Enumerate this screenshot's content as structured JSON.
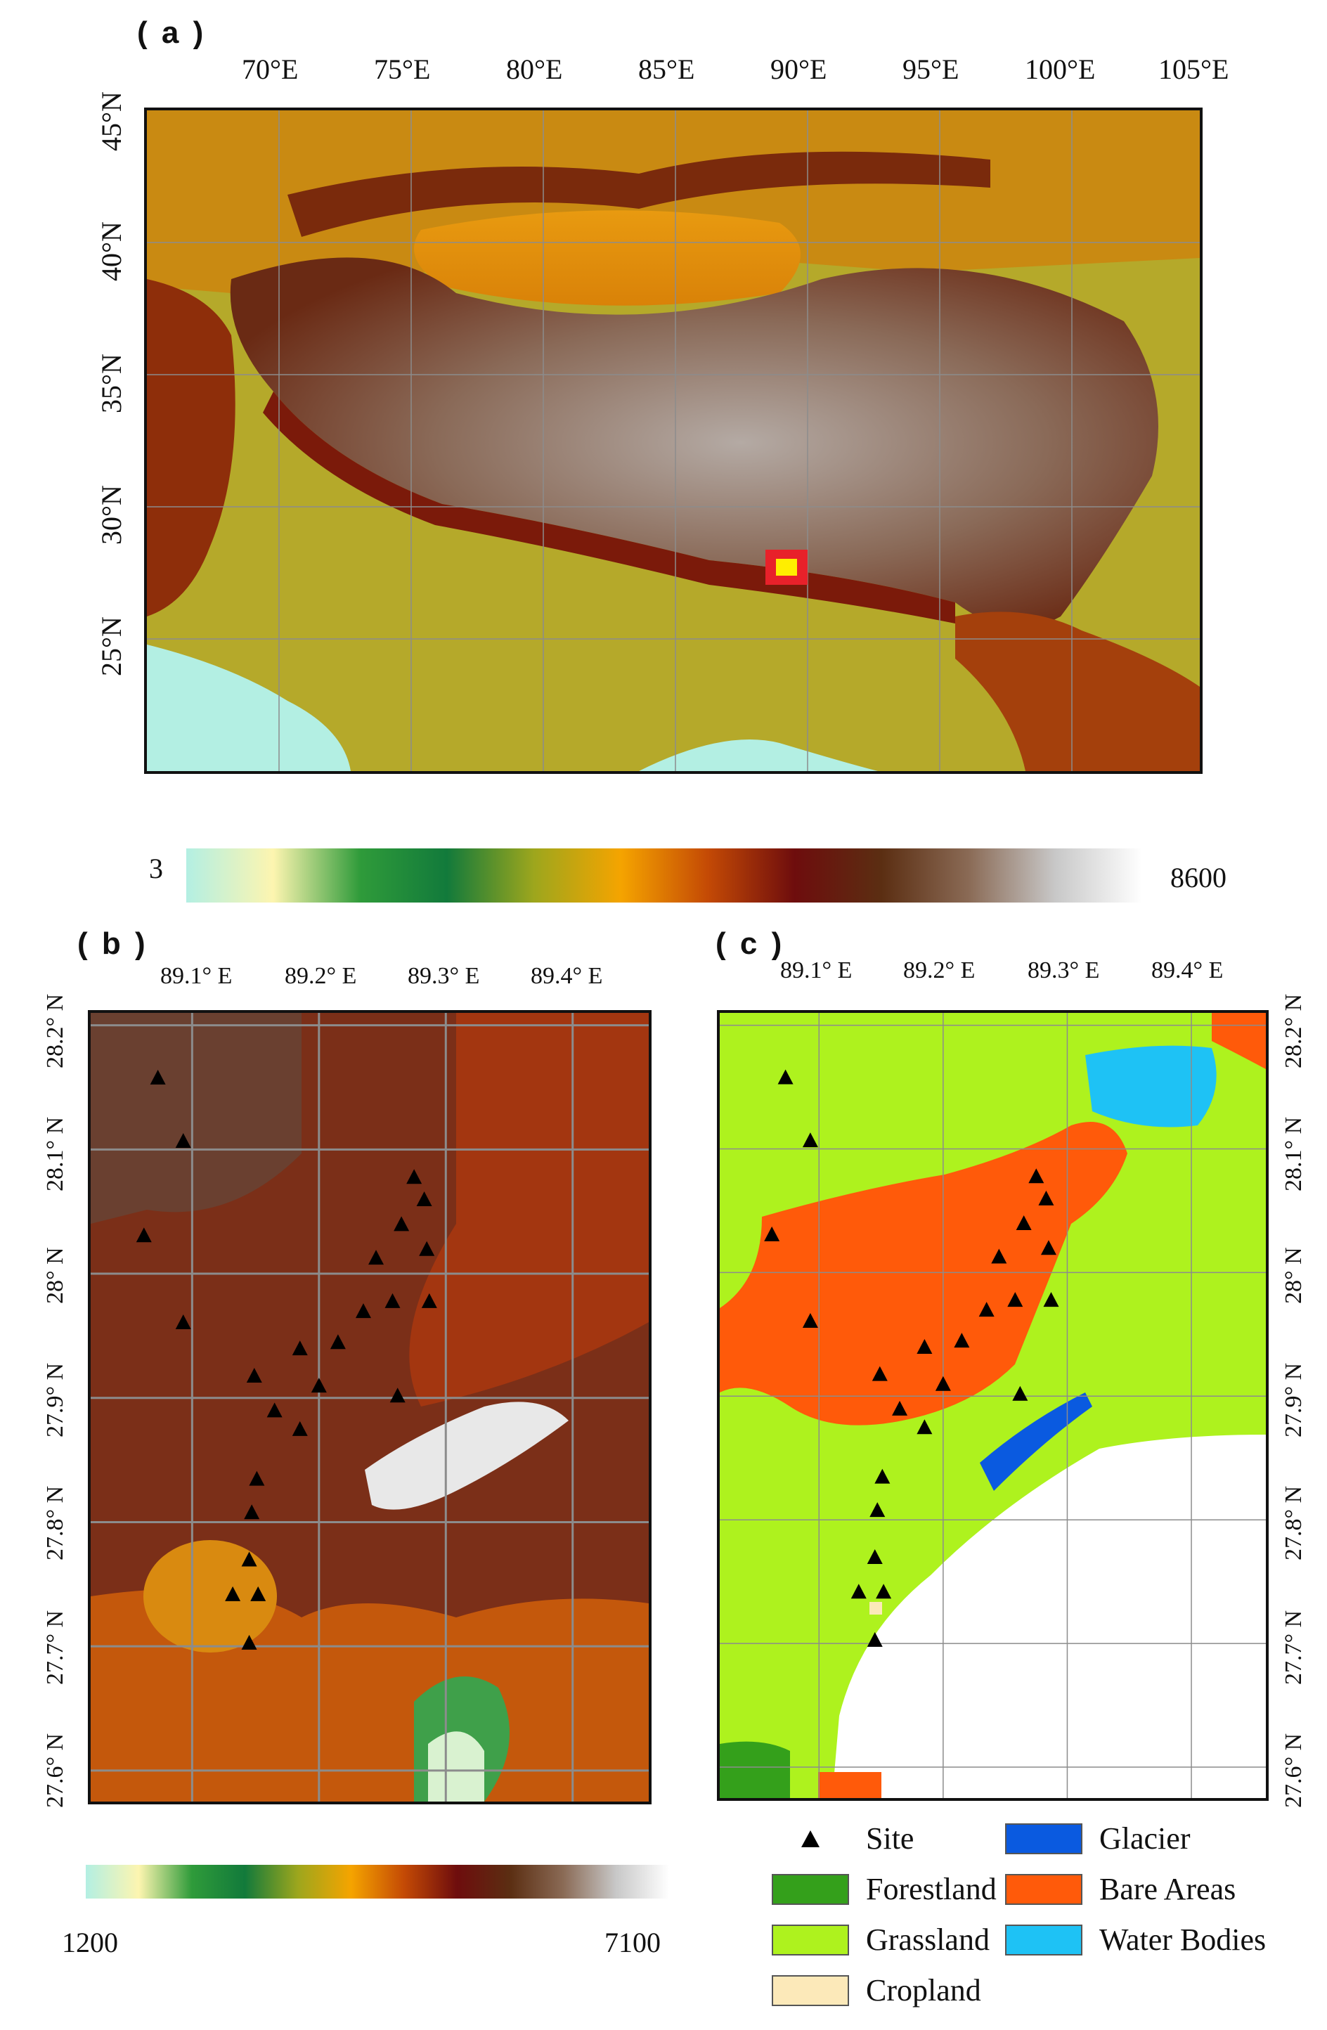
{
  "panels": {
    "a": {
      "label": "( a )",
      "lon_ticks": [
        "70°E",
        "75°E",
        "80°E",
        "85°E",
        "90°E",
        "95°E",
        "100°E",
        "105°E"
      ],
      "lat_ticks": [
        "45°N",
        "40°N",
        "35°N",
        "30°N",
        "25°N"
      ],
      "study_area_marker_color": "#e8212a",
      "study_area_fill_color": "#ffee00"
    },
    "b": {
      "label": "( b )",
      "lon_ticks": [
        "89.1° E",
        "89.2° E",
        "89.3° E",
        "89.4° E"
      ],
      "lat_ticks": [
        "28.2° N",
        "28.1° N",
        "28° N",
        "27.9° N",
        "27.8° N",
        "27.7° N",
        "27.6° N"
      ]
    },
    "c": {
      "label": "( c )",
      "lon_ticks": [
        "89.1° E",
        "89.2° E",
        "89.3° E",
        "89.4° E"
      ],
      "lat_ticks": [
        "28.2° N",
        "28.1° N",
        "28° N",
        "27.9° N",
        "27.8° N",
        "27.7° N",
        "27.6° N"
      ]
    }
  },
  "elevation_bar_main": {
    "min": "3",
    "max": "8600"
  },
  "elevation_bar_inset": {
    "min": "1200",
    "max": "7100"
  },
  "elevation_colors": [
    "#b3efe3",
    "#fdf5b0",
    "#2f9b3a",
    "#127a3b",
    "#9da61d",
    "#f5a400",
    "#c44a05",
    "#6e0d0d",
    "#5b2e12",
    "#8a6a55",
    "#c8c8c8",
    "#ffffff"
  ],
  "sites": [
    {
      "lon": 89.073,
      "lat": 28.158
    },
    {
      "lon": 89.093,
      "lat": 28.107
    },
    {
      "lon": 89.062,
      "lat": 28.031
    },
    {
      "lon": 89.093,
      "lat": 27.961
    },
    {
      "lon": 89.149,
      "lat": 27.918
    },
    {
      "lon": 89.165,
      "lat": 27.89
    },
    {
      "lon": 89.185,
      "lat": 27.94
    },
    {
      "lon": 89.185,
      "lat": 27.875
    },
    {
      "lon": 89.2,
      "lat": 27.91
    },
    {
      "lon": 89.215,
      "lat": 27.945
    },
    {
      "lon": 89.235,
      "lat": 27.97
    },
    {
      "lon": 89.245,
      "lat": 28.013
    },
    {
      "lon": 89.258,
      "lat": 27.978
    },
    {
      "lon": 89.262,
      "lat": 27.902
    },
    {
      "lon": 89.265,
      "lat": 28.04
    },
    {
      "lon": 89.275,
      "lat": 28.078
    },
    {
      "lon": 89.283,
      "lat": 28.06
    },
    {
      "lon": 89.285,
      "lat": 28.02
    },
    {
      "lon": 89.287,
      "lat": 27.978
    },
    {
      "lon": 89.151,
      "lat": 27.835
    },
    {
      "lon": 89.147,
      "lat": 27.808
    },
    {
      "lon": 89.145,
      "lat": 27.77
    },
    {
      "lon": 89.132,
      "lat": 27.742
    },
    {
      "lon": 89.152,
      "lat": 27.742
    },
    {
      "lon": 89.145,
      "lat": 27.703
    }
  ],
  "legend": {
    "site": "Site",
    "items": [
      {
        "label": "Glacier",
        "color": "#0a5ae0"
      },
      {
        "label": "Forestland",
        "color": "#34a01b"
      },
      {
        "label": "Bare Areas",
        "color": "#ff5a0a"
      },
      {
        "label": "Grassland",
        "color": "#aef21e"
      },
      {
        "label": "Water Bodies",
        "color": "#1ec2f5"
      },
      {
        "label": "Cropland",
        "color": "#fce9b9"
      }
    ]
  }
}
